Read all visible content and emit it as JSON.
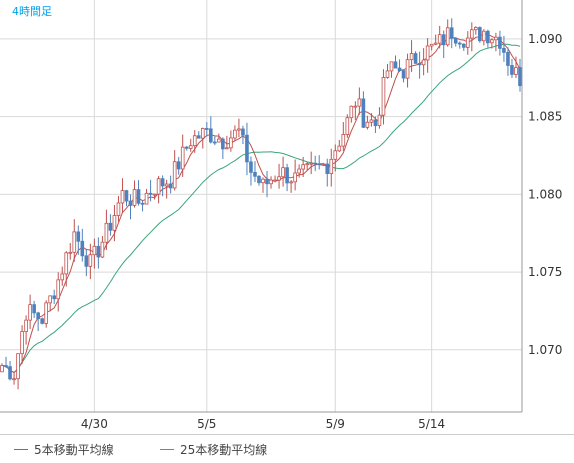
{
  "chart_data": {
    "type": "candlestick",
    "title": "4時間足",
    "x_tick_labels": [
      "4/30",
      "5/5",
      "5/9",
      "5/14"
    ],
    "x_tick_index": [
      23,
      51,
      83,
      107
    ],
    "y_tick_labels": [
      "1.090",
      "1.085",
      "1.080",
      "1.075",
      "1.070"
    ],
    "y_ticks": [
      1.09,
      1.085,
      1.08,
      1.075,
      1.07
    ],
    "ylim": [
      1.066,
      1.0925
    ],
    "grid": true,
    "legend_position": "bottom-left",
    "colors": {
      "up": "#c0504d",
      "down": "#4f81bd",
      "ma5": "#c0504d",
      "ma25": "#3aa57a",
      "grid": "#d9d9d9",
      "axis": "#999999",
      "title": "#00a0e9"
    },
    "series": [
      {
        "name": "5本移動平均線",
        "color": "#c0504d"
      },
      {
        "name": "25本移動平均線",
        "color": "#3aa57a"
      }
    ],
    "candle_count": 130,
    "key_points": [
      [
        0,
        1.069
      ],
      [
        3,
        1.0685
      ],
      [
        6,
        1.0725
      ],
      [
        10,
        1.072
      ],
      [
        14,
        1.0745
      ],
      [
        18,
        1.0775
      ],
      [
        22,
        1.0755
      ],
      [
        26,
        1.0775
      ],
      [
        30,
        1.08
      ],
      [
        34,
        1.0795
      ],
      [
        38,
        1.0805
      ],
      [
        42,
        1.081
      ],
      [
        47,
        1.0835
      ],
      [
        51,
        1.084
      ],
      [
        55,
        1.0835
      ],
      [
        59,
        1.084
      ],
      [
        62,
        1.0815
      ],
      [
        65,
        1.0805
      ],
      [
        69,
        1.0815
      ],
      [
        73,
        1.081
      ],
      [
        77,
        1.0815
      ],
      [
        81,
        1.082
      ],
      [
        85,
        1.084
      ],
      [
        88,
        1.086
      ],
      [
        90,
        1.085
      ],
      [
        93,
        1.0845
      ],
      [
        96,
        1.088
      ],
      [
        100,
        1.088
      ],
      [
        104,
        1.089
      ],
      [
        108,
        1.0895
      ],
      [
        112,
        1.0905
      ],
      [
        116,
        1.09
      ],
      [
        120,
        1.0905
      ],
      [
        124,
        1.09
      ],
      [
        127,
        1.088
      ],
      [
        129,
        1.0875
      ]
    ]
  }
}
